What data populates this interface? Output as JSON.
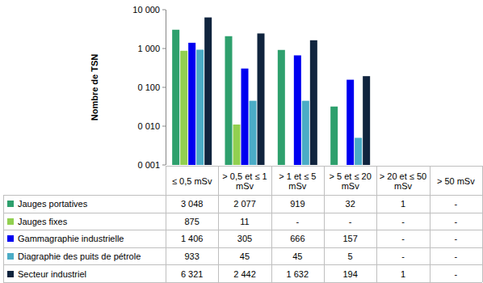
{
  "chart_data": {
    "type": "bar",
    "y_label": "Nombre de TSN",
    "categories": [
      "≤ 0,5 mSv",
      "> 0,5 et ≤ 1 mSv",
      "> 1 et ≤ 5 mSv",
      "> 5 et ≤ 20 mSv",
      "> 20 et ≤ 50 mSv",
      "> 50 mSv"
    ],
    "series": [
      {
        "name": "Jauges portatives",
        "color": "#2ea06d",
        "values": [
          3048,
          2077,
          919,
          32,
          1,
          null
        ],
        "value_labels": [
          "3 048",
          "2 077",
          "919",
          "32",
          "1",
          "-"
        ]
      },
      {
        "name": "Jauges fixes",
        "color": "#92d050",
        "values": [
          875,
          11,
          null,
          null,
          null,
          null
        ],
        "value_labels": [
          "875",
          "11",
          "-",
          "-",
          "-",
          "-"
        ]
      },
      {
        "name": "Gammagraphie industrielle",
        "color": "#0000f0",
        "values": [
          1406,
          305,
          666,
          157,
          null,
          null
        ],
        "value_labels": [
          "1 406",
          "305",
          "666",
          "157",
          "-",
          "-"
        ]
      },
      {
        "name": "Diagraphie des puits de pétrole",
        "color": "#4bacc6",
        "values": [
          933,
          45,
          45,
          5,
          null,
          null
        ],
        "value_labels": [
          "933",
          "45",
          "45",
          "5",
          "-",
          "-"
        ]
      },
      {
        "name": "Secteur industriel",
        "color": "#10243e",
        "values": [
          6321,
          2442,
          1632,
          194,
          1,
          null
        ],
        "value_labels": [
          "6 321",
          "2 442",
          "1 632",
          "194",
          "1",
          "-"
        ]
      }
    ],
    "ylim": [
      1,
      10000
    ],
    "yticks": [
      {
        "value": 1,
        "label": "0 001"
      },
      {
        "value": 10,
        "label": "0 010"
      },
      {
        "value": 100,
        "label": "0 100"
      },
      {
        "value": 1000,
        "label": "1 000"
      },
      {
        "value": 10000,
        "label": "10 000"
      }
    ],
    "log": "y",
    "grid": false
  }
}
